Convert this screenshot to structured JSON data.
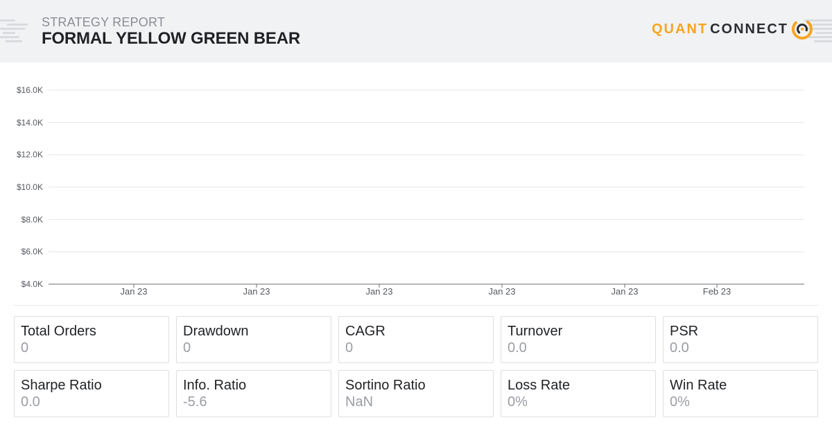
{
  "header": {
    "report_label": "STRATEGY REPORT",
    "title": "FORMAL YELLOW GREEN BEAR",
    "logo": {
      "quant": "QUANT",
      "connect": "CONNECT",
      "icon": "quantconnect-ring-icon"
    }
  },
  "chart_data": {
    "type": "line",
    "title": "",
    "xlabel": "",
    "ylabel": "",
    "y_ticks": [
      "$16.0K",
      "$14.0K",
      "$12.0K",
      "$10.0K",
      "$8.0K",
      "$6.0K",
      "$4.0K"
    ],
    "ylim": [
      4000,
      16000
    ],
    "x_ticks": [
      "Jan 23",
      "Jan 23",
      "Jan 23",
      "Jan 23",
      "Jan 23",
      "Feb 23"
    ],
    "grid": true,
    "series": []
  },
  "stats": [
    {
      "label": "Total Orders",
      "value": "0"
    },
    {
      "label": "Drawdown",
      "value": "0"
    },
    {
      "label": "CAGR",
      "value": "0"
    },
    {
      "label": "Turnover",
      "value": "0.0"
    },
    {
      "label": "PSR",
      "value": "0.0"
    },
    {
      "label": "Sharpe Ratio",
      "value": "0.0"
    },
    {
      "label": "Info. Ratio",
      "value": "-5.6"
    },
    {
      "label": "Sortino Ratio",
      "value": "NaN"
    },
    {
      "label": "Loss Rate",
      "value": "0%"
    },
    {
      "label": "Win Rate",
      "value": "0%"
    }
  ],
  "colors": {
    "accent": "#f5a623",
    "dark": "#2b2d31",
    "header_bg": "#f1f2f4",
    "muted": "#9a9da3"
  }
}
